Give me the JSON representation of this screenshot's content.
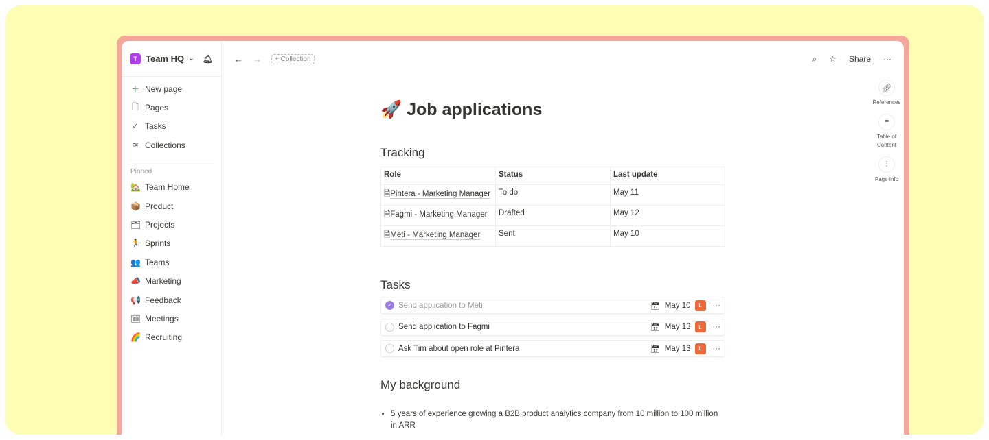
{
  "sidebar": {
    "workspace": {
      "initial": "T",
      "name": "Team HQ"
    },
    "nav": [
      {
        "label": "New page",
        "icon": "plus-icon"
      },
      {
        "label": "Pages",
        "icon": "page-icon"
      },
      {
        "label": "Tasks",
        "icon": "check-circle-icon"
      },
      {
        "label": "Collections",
        "icon": "layers-icon"
      }
    ],
    "pinned_label": "Pinned",
    "pinned": [
      {
        "label": "Team Home",
        "icon": "🏡"
      },
      {
        "label": "Product",
        "icon": "📦"
      },
      {
        "label": "Projects",
        "icon": "🗂"
      },
      {
        "label": "Sprints",
        "icon": "🏃"
      },
      {
        "label": "Teams",
        "icon": "👥"
      },
      {
        "label": "Marketing",
        "icon": "📣"
      },
      {
        "label": "Feedback",
        "icon": "📢"
      },
      {
        "label": "Meetings",
        "icon": "🗓"
      },
      {
        "label": "Recruiting",
        "icon": "🌈"
      }
    ]
  },
  "toolbar": {
    "collection": "+ Collection",
    "share": "Share"
  },
  "rail": [
    {
      "label": "References",
      "icon": "link-icon"
    },
    {
      "label": "Table of Content",
      "icon": "list-icon"
    },
    {
      "label": "Page Info",
      "icon": "sliders-icon"
    }
  ],
  "page": {
    "emoji": "🚀",
    "title": "Job applications",
    "tracking": {
      "heading": "Tracking",
      "columns": [
        "Role",
        "Status",
        "Last update"
      ],
      "rows": [
        [
          "Pintera - Marketing Manager",
          "To do",
          "May 11"
        ],
        [
          "Fagmi - Marketing Manager",
          "Drafted",
          "May 12"
        ],
        [
          "Meti - Marketing Manager",
          "Sent",
          "May 10"
        ]
      ]
    },
    "tasks": {
      "heading": "Tasks",
      "items": [
        {
          "title": "Send application to Meti",
          "date": "May 10",
          "assignee": "L",
          "done": true
        },
        {
          "title": "Send application to Fagmi",
          "date": "May 13",
          "assignee": "L",
          "done": false
        },
        {
          "title": "Ask Tim about open role at Pintera",
          "date": "May 13",
          "assignee": "L",
          "done": false
        }
      ]
    },
    "background": {
      "heading": "My background",
      "bullets": [
        "5 years of experience growing a B2B product analytics company from 10 million to 100 million in ARR"
      ]
    }
  },
  "colors": {
    "accent": "#b23cf0",
    "done": "#9b7de8",
    "avatar": "#ee6a3c",
    "frame": "#f6a79c",
    "backdrop": "#fdfdb4"
  }
}
